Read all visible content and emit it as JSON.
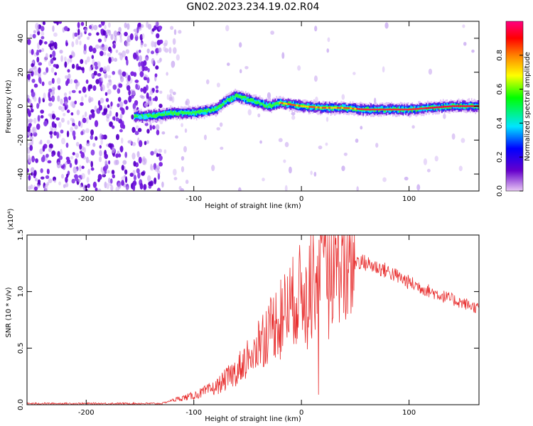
{
  "title": "GN02.2023.234.19.02.R04",
  "chart_data": [
    {
      "type": "heatmap",
      "xlabel": "Height of straight line (km)",
      "ylabel": "Frequency (Hz)",
      "xlim": [
        -255,
        165
      ],
      "ylim": [
        -50,
        50
      ],
      "x_ticks": [
        -200,
        -100,
        0,
        100
      ],
      "y_ticks": [
        -40,
        -20,
        0,
        20,
        40
      ],
      "colorbar": {
        "label": "Normalized spectral amplitude",
        "range": [
          0,
          1
        ],
        "ticks": [
          0.0,
          0.2,
          0.4,
          0.6,
          0.8
        ],
        "colormap": [
          "#e8c8f4",
          "#6600cc",
          "#0000ff",
          "#00e5ff",
          "#00ff00",
          "#ffff00",
          "#ff8000",
          "#ff0000",
          "#ff0080"
        ]
      },
      "ridge": {
        "x": [
          -155,
          -145,
          -130,
          -120,
          -110,
          -100,
          -90,
          -80,
          -70,
          -60,
          -50,
          -40,
          -30,
          -20,
          -10,
          0,
          20,
          40,
          60,
          80,
          100,
          120,
          140,
          165
        ],
        "y": [
          -6,
          -6,
          -5,
          -4,
          -4,
          -4,
          -3,
          -2,
          3,
          6,
          4,
          2,
          0,
          2,
          1,
          0,
          -1,
          -1,
          -2,
          -2,
          -2,
          -1,
          0,
          0
        ]
      }
    },
    {
      "type": "line",
      "xlabel": "Height of straight line (km)",
      "ylabel": "SNR (10 * v/v)",
      "y_multiplier": "(x10⁴)",
      "xlim": [
        -255,
        165
      ],
      "ylim": [
        0,
        1.5
      ],
      "x_ticks": [
        -200,
        -100,
        0,
        100
      ],
      "y_ticks": [
        "0.0",
        "0.5",
        "1.0",
        "1.5"
      ],
      "color": "#e83030",
      "envelope": {
        "x": [
          -255,
          -130,
          -120,
          -100,
          -80,
          -60,
          -40,
          -20,
          0,
          20,
          40,
          50,
          60,
          80,
          100,
          120,
          140,
          165
        ],
        "y": [
          0.01,
          0.01,
          0.04,
          0.08,
          0.15,
          0.3,
          0.55,
          0.78,
          1.0,
          1.22,
          1.3,
          1.28,
          1.25,
          1.18,
          1.08,
          1.0,
          0.93,
          0.85
        ]
      }
    }
  ]
}
